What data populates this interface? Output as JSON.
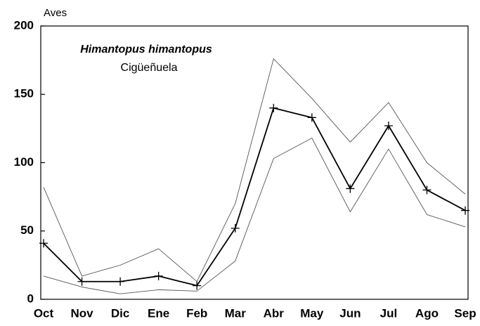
{
  "chart_data": {
    "type": "line",
    "title": "Himantopus himantopus",
    "subtitle": "Cigüeñuela",
    "y_label": "Aves",
    "categories": [
      "Oct",
      "Nov",
      "Dic",
      "Ene",
      "Feb",
      "Mar",
      "Abr",
      "May",
      "Jun",
      "Jul",
      "Ago",
      "Sep"
    ],
    "series": [
      {
        "color": "#000000",
        "marker": "+",
        "values": [
          41,
          13,
          13,
          17,
          10,
          52,
          140,
          133,
          81,
          127,
          80,
          65
        ]
      },
      {
        "color": "#555555",
        "values": [
          82,
          17,
          25,
          37,
          13,
          70,
          176,
          147,
          115,
          144,
          100,
          77
        ]
      },
      {
        "color": "#555555",
        "values": [
          17,
          9,
          4,
          7,
          6,
          28,
          103,
          118,
          64,
          110,
          62,
          53
        ]
      }
    ],
    "ylim": [
      0,
      200
    ],
    "yticks": [
      0,
      50,
      100,
      150,
      200
    ],
    "grid": false
  }
}
